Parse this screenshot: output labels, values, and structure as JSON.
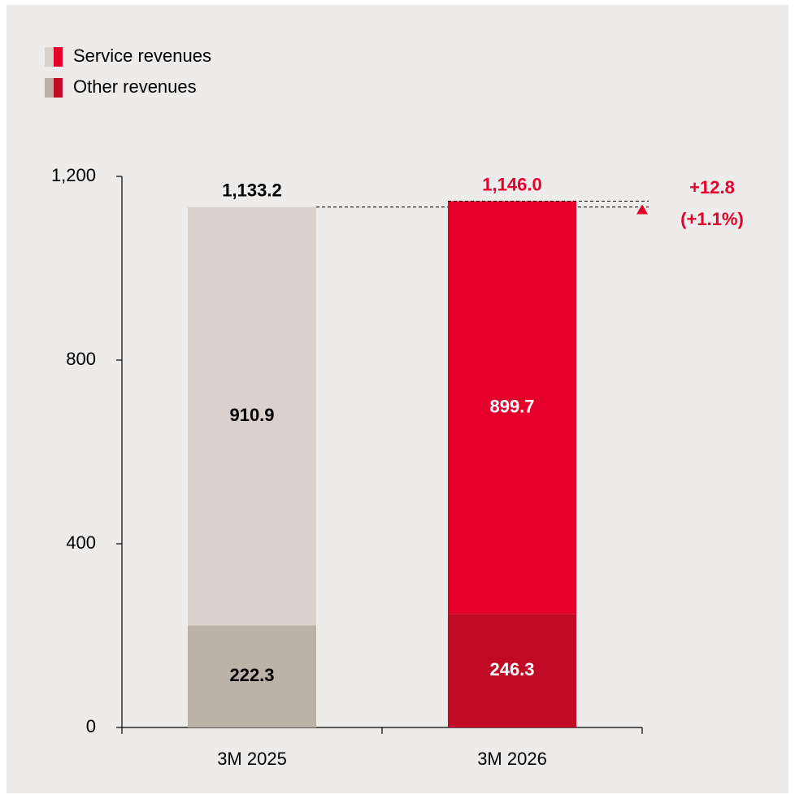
{
  "chart_data": {
    "type": "stacked_bar",
    "categories": [
      "3M 2025",
      "3M 2026"
    ],
    "series": [
      {
        "name": "Other revenues",
        "colors": [
          "#bbb2a8",
          "#c00a26"
        ],
        "values": [
          222.3,
          246.3
        ]
      },
      {
        "name": "Service revenues",
        "colors": [
          "#d9d1cb",
          "#e4002b"
        ],
        "values": [
          910.9,
          899.7
        ]
      }
    ],
    "totals": [
      1133.2,
      1146.0
    ],
    "total_labels": [
      "1,133.2",
      "1,146.0"
    ],
    "total_label_colors": [
      "#000000",
      "#e4002b"
    ],
    "value_label_colors": [
      "#000000",
      "#ffffff"
    ],
    "annotation": {
      "value": 12.8,
      "label": "+12.8",
      "percent_label": "(+1.1%)",
      "color": "#e4002b"
    },
    "legend_order": [
      1,
      0
    ],
    "ylim": [
      0,
      1200
    ],
    "yticks": [
      0,
      400,
      800,
      {
        "value": 1200,
        "label": "1,200"
      }
    ]
  }
}
